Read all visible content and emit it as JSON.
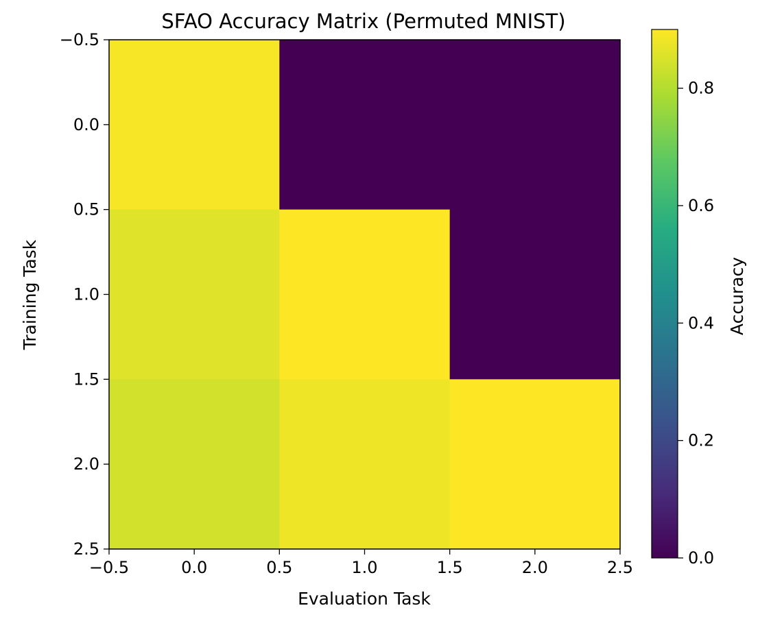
{
  "chart_data": {
    "type": "heatmap",
    "title": "SFAO Accuracy Matrix (Permuted MNIST)",
    "xlabel": "Evaluation Task",
    "ylabel": "Training Task",
    "colorbar_label": "Accuracy",
    "colormap": "viridis",
    "row_index": [
      0,
      1,
      2
    ],
    "col_index": [
      0,
      1,
      2
    ],
    "values": [
      [
        0.89,
        0.0,
        0.0
      ],
      [
        0.86,
        0.9,
        0.0
      ],
      [
        0.84,
        0.88,
        0.9
      ]
    ],
    "xlim": [
      -0.5,
      2.5
    ],
    "ylim": [
      2.5,
      -0.5
    ],
    "xticks": [
      -0.5,
      0.0,
      0.5,
      1.0,
      1.5,
      2.0,
      2.5
    ],
    "yticks": [
      -0.5,
      0.0,
      0.5,
      1.0,
      1.5,
      2.0,
      2.5
    ],
    "xtick_labels": [
      "−0.5",
      "0.0",
      "0.5",
      "1.0",
      "1.5",
      "2.0",
      "2.5"
    ],
    "ytick_labels": [
      "−0.5",
      "0.0",
      "0.5",
      "1.0",
      "1.5",
      "2.0",
      "2.5"
    ],
    "colorbar_range": [
      0.0,
      0.9
    ],
    "colorbar_ticks": [
      0.0,
      0.2,
      0.4,
      0.6,
      0.8
    ],
    "colorbar_tick_labels": [
      "0.0",
      "0.2",
      "0.4",
      "0.6",
      "0.8"
    ],
    "grid": false
  }
}
